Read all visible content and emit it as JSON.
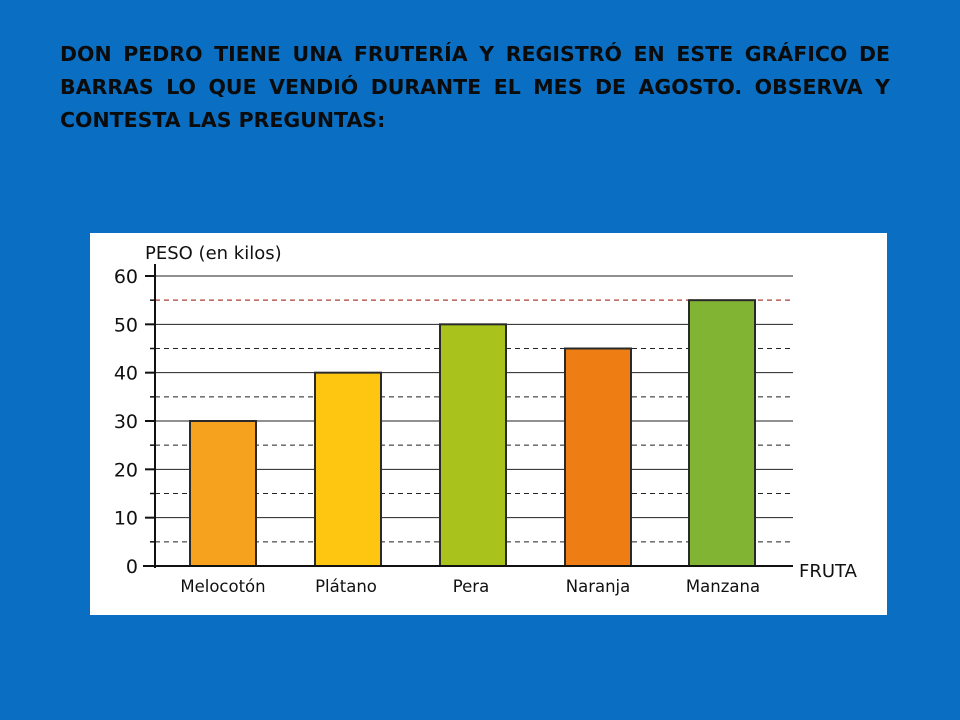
{
  "slide": {
    "instruction": "DON PEDRO TIENE UNA FRUTERÍA Y REGISTRÓ EN ESTE GRÁFICO DE BARRAS LO QUE VENDIÓ DURANTE EL MES DE AGOSTO. OBSERVA Y CONTESTA LAS PREGUNTAS:"
  },
  "colors": {
    "background": "#0a6fc2",
    "melocoton": "#f7a21e",
    "platano": "#ffc611",
    "pera": "#a9c21c",
    "naranja": "#ee7d14",
    "manzana": "#82b433",
    "bar_outline": "#2a2a2a"
  },
  "chart_data": {
    "type": "bar",
    "ylabel": "PESO (en kilos)",
    "xlabel": "FRUTA",
    "categories": [
      "Melocotón",
      "Plátano",
      "Pera",
      "Naranja",
      "Manzana"
    ],
    "values": [
      30,
      40,
      50,
      45,
      55
    ],
    "ylim": [
      0,
      60
    ],
    "yticks": [
      "0",
      "10",
      "20",
      "30",
      "40",
      "50",
      "60"
    ],
    "grid": "solid lines every 10, dashed lines every 5",
    "legend": "none"
  }
}
